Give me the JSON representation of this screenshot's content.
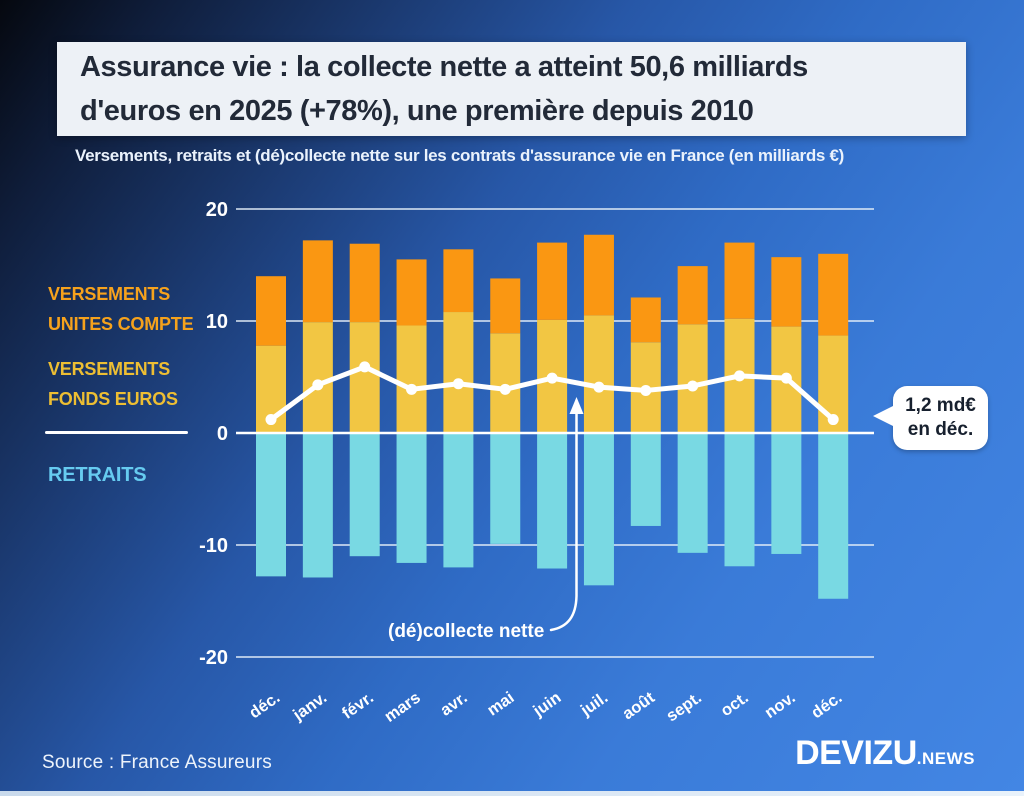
{
  "header": {
    "title_line1": "Assurance vie : la collecte nette a atteint 50,6 milliards",
    "title_line2": "d'euros en 2025 (+78%), une première depuis 2010",
    "subtitle": "Versements, retraits et (dé)collecte nette sur les contrats d'assurance vie en France (en milliards €)"
  },
  "legend": {
    "items": [
      {
        "line1": "VERSEMENTS",
        "line2": "UNITES COMPTE",
        "color": "#F6A21C"
      },
      {
        "line1": "VERSEMENTS",
        "line2": "FONDS EUROS",
        "color": "#EDBE33"
      },
      {
        "line1": "RETRAITS",
        "line2": "",
        "color": "#66CBF0"
      }
    ]
  },
  "chart_data": {
    "type": "bar",
    "subtype": "stacked bars with overlaid line",
    "categories": [
      "déc.",
      "janv.",
      "févr.",
      "mars",
      "avr.",
      "mai",
      "juin",
      "juil.",
      "août",
      "sept.",
      "oct.",
      "nov.",
      "déc."
    ],
    "series": [
      {
        "name": "Versements unités de compte",
        "type": "bar",
        "stack": "versements",
        "color": "#FA9712",
        "values": [
          6.2,
          7.3,
          7.0,
          5.9,
          5.6,
          4.9,
          6.9,
          7.2,
          4.0,
          5.2,
          6.8,
          6.2,
          7.3
        ]
      },
      {
        "name": "Versements fonds euros",
        "type": "bar",
        "stack": "versements",
        "color": "#F2C643",
        "values": [
          7.8,
          9.9,
          9.9,
          9.6,
          10.8,
          8.9,
          10.1,
          10.5,
          8.1,
          9.7,
          10.2,
          9.5,
          8.7
        ]
      },
      {
        "name": "Retraits",
        "type": "bar",
        "color": "#79D9E3",
        "values": [
          -12.8,
          -12.9,
          -11.0,
          -11.6,
          -12.0,
          -9.9,
          -12.1,
          -13.6,
          -8.3,
          -10.7,
          -11.9,
          -10.8,
          -14.8
        ]
      },
      {
        "name": "(dé)collecte nette",
        "type": "line",
        "color": "#FFFFFF",
        "values": [
          1.2,
          4.3,
          5.9,
          3.9,
          4.4,
          3.9,
          4.9,
          4.1,
          3.8,
          4.2,
          5.1,
          4.9,
          1.2
        ]
      }
    ],
    "ylim": [
      -20,
      20
    ],
    "yticks": [
      20,
      10,
      0,
      -10,
      -20
    ],
    "grid": true,
    "legend_position": "left",
    "annotations": {
      "line_label": "(dé)collecte nette",
      "callout_line1": "1,2 md€",
      "callout_line2": "en déc."
    }
  },
  "footer": {
    "source": "Source : France Assureurs",
    "brand": "DEVIZU",
    "brand_suffix": ".NEWS"
  }
}
